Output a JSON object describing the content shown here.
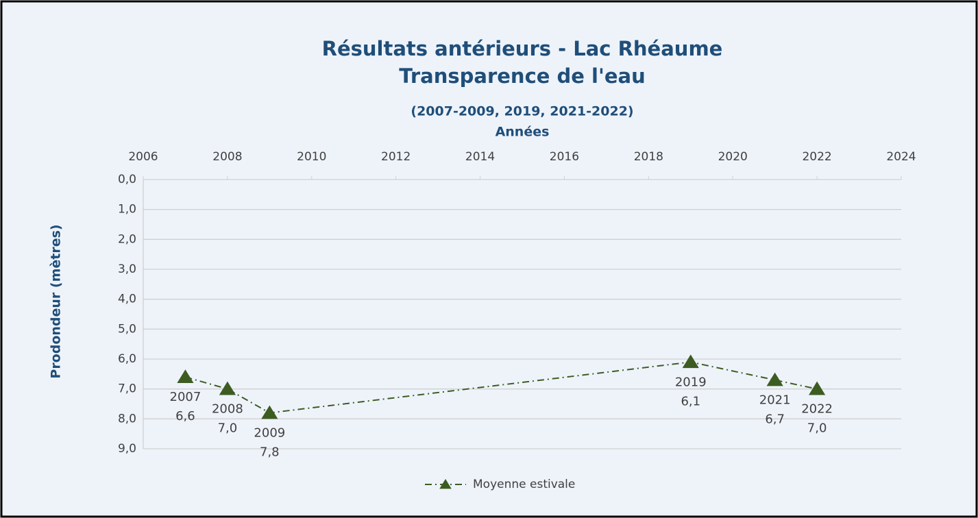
{
  "chart_data": {
    "type": "line",
    "title": [
      "Résultats antérieurs - Lac Rhéaume",
      "Transparence de l'eau"
    ],
    "subtitle": "(2007-2009, 2019, 2021-2022)",
    "x_label": "Années",
    "y_label": "Prodondeur (mètres)",
    "x": [
      2007,
      2008,
      2009,
      2019,
      2021,
      2022
    ],
    "series": [
      {
        "name": "Moyenne estivale",
        "color": "#3d5c22",
        "values": [
          6.6,
          7.0,
          7.8,
          6.1,
          6.7,
          7.0
        ],
        "value_labels": [
          "6,6",
          "7,0",
          "7,8",
          "6,1",
          "6,7",
          "7,0"
        ]
      }
    ],
    "xlim": [
      2006,
      2024
    ],
    "xticks": [
      2006,
      2008,
      2010,
      2012,
      2014,
      2016,
      2018,
      2020,
      2022,
      2024
    ],
    "ylim": [
      0,
      9
    ],
    "y_inverted": true,
    "yticks": [
      {
        "value": 0,
        "label": "0,0"
      },
      {
        "value": 1,
        "label": "1,0"
      },
      {
        "value": 2,
        "label": "2,0"
      },
      {
        "value": 3,
        "label": "3,0"
      },
      {
        "value": 4,
        "label": "4,0"
      },
      {
        "value": 5,
        "label": "5,0"
      },
      {
        "value": 6,
        "label": "6,0"
      },
      {
        "value": 7,
        "label": "7,0"
      },
      {
        "value": 8,
        "label": "8,0"
      },
      {
        "value": 9,
        "label": "9,0"
      }
    ],
    "grid": true,
    "legend": "bottom"
  }
}
